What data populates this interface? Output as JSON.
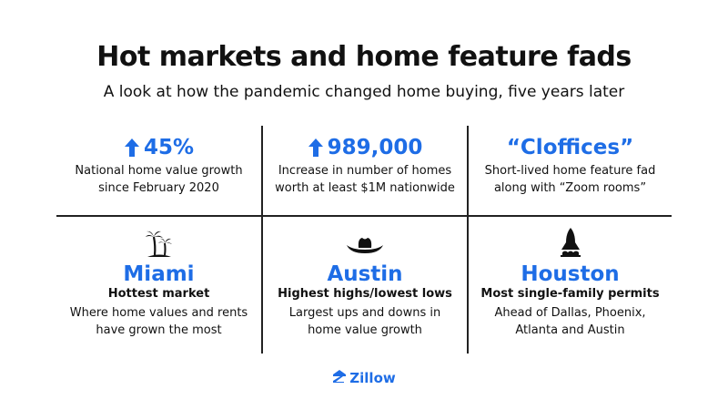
{
  "header": {
    "title": "Hot markets and home feature fads",
    "subtitle": "A look at how the pandemic changed home buying, five years later"
  },
  "stats": [
    {
      "value": "45%",
      "arrow": "up-arrow-icon",
      "lines": [
        "National home value growth",
        "since February 2020"
      ]
    },
    {
      "value": "989,000",
      "arrow": "up-arrow-icon",
      "lines": [
        "Increase in number of homes",
        "worth at least $1M nationwide"
      ]
    },
    {
      "value": "“Cloffices”",
      "lines": [
        "Short-lived home feature fad",
        "along with “Zoom rooms”"
      ]
    }
  ],
  "markets": [
    {
      "icon": "palm-trees-icon",
      "city": "Miami",
      "label": "Hottest market",
      "lines": [
        "Where home values and rents",
        "have grown the most"
      ]
    },
    {
      "icon": "cowboy-hat-icon",
      "city": "Austin",
      "label": "Highest highs/lowest lows",
      "lines": [
        "Largest ups and downs in",
        "home value growth"
      ]
    },
    {
      "icon": "rocket-icon",
      "city": "Houston",
      "label": "Most single-family permits",
      "lines": [
        "Ahead of Dallas, Phoenix,",
        "Atlanta and Austin"
      ]
    }
  ],
  "brand": {
    "name": "Zillow",
    "color": "#1e6de6"
  }
}
